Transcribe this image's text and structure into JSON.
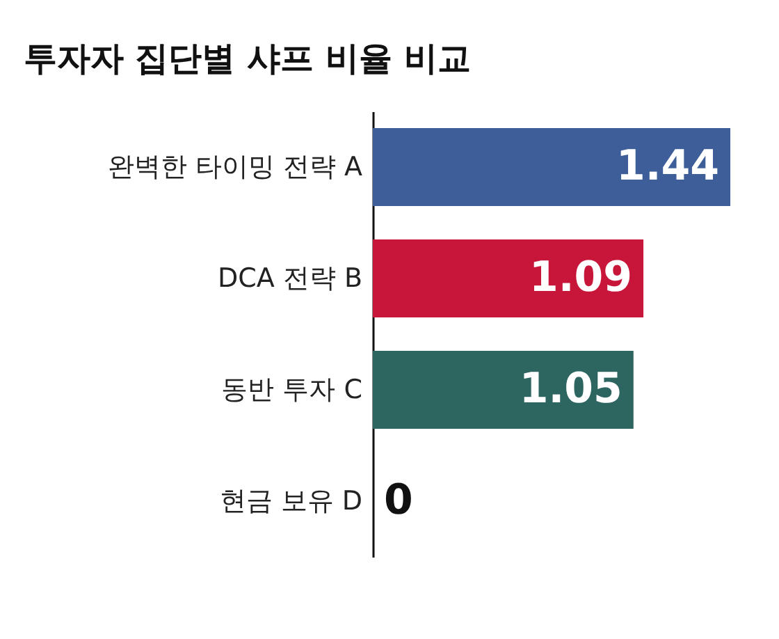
{
  "chart_data": {
    "type": "bar",
    "orientation": "horizontal",
    "title": "투자자 집단별 샤프 비율 비교",
    "categories": [
      "완벽한 타이밍 전략 A",
      "DCA 전략 B",
      "동반 투자 C",
      "현금 보유 D"
    ],
    "values": [
      1.44,
      1.09,
      1.05,
      0
    ],
    "colors": [
      "#3d5e99",
      "#c8163a",
      "#2d6561",
      "#2d2d2d"
    ],
    "data_labels": true
  }
}
